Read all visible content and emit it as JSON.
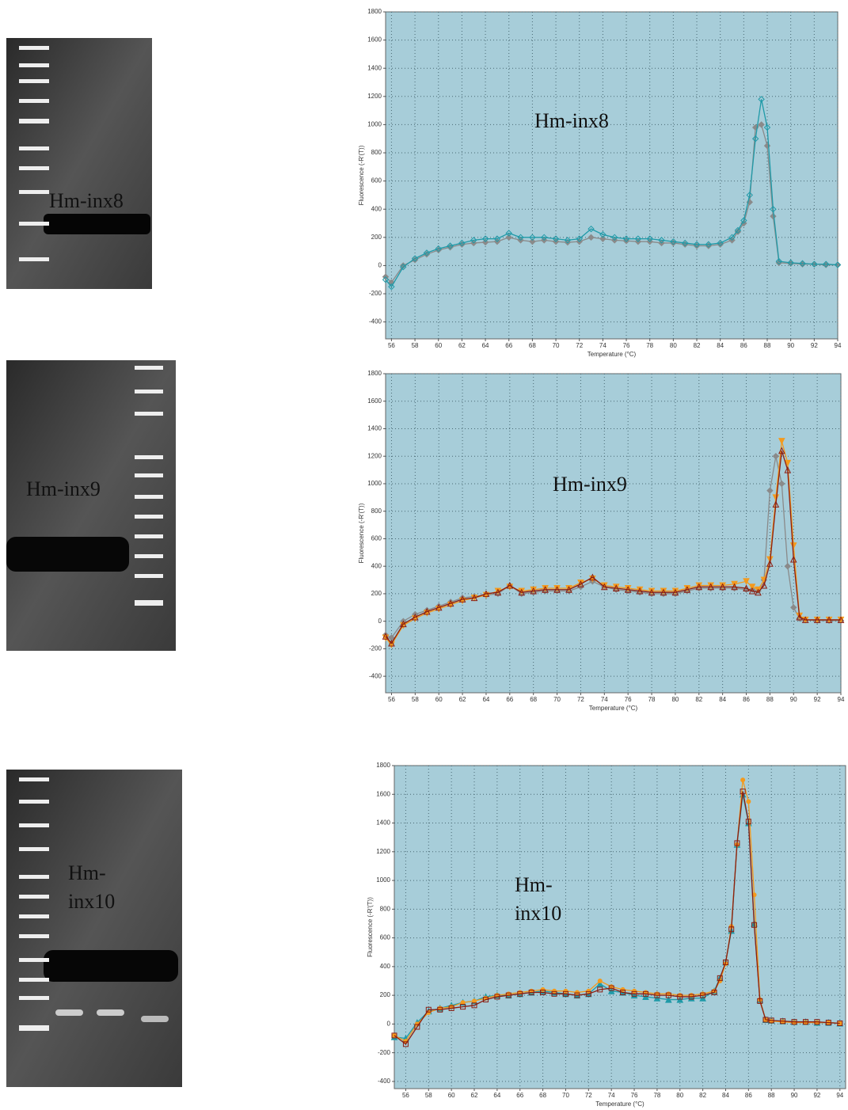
{
  "gels": [
    {
      "label": "Hm-inx8"
    },
    {
      "label": "Hm-inx9"
    },
    {
      "label": "Hm-inx10"
    }
  ],
  "chart_data": [
    {
      "type": "line",
      "annotation": "Hm-inx8",
      "xlabel": "Temperature (°C)",
      "ylabel": "Fluorescence (-R'(T))",
      "xlim": [
        55.5,
        94
      ],
      "ylim": [
        -520,
        1800
      ],
      "grid": true,
      "xticks": [
        56,
        58,
        60,
        62,
        64,
        66,
        68,
        70,
        72,
        74,
        76,
        78,
        80,
        82,
        84,
        86,
        88,
        90,
        92,
        94
      ],
      "yticks": [
        -400,
        -200,
        0,
        200,
        400,
        600,
        800,
        1000,
        1200,
        1400,
        1600,
        1800
      ],
      "x": [
        55.5,
        56,
        57,
        58,
        59,
        60,
        61,
        62,
        63,
        64,
        65,
        66,
        67,
        68,
        69,
        70,
        71,
        72,
        73,
        74,
        75,
        76,
        77,
        78,
        79,
        80,
        81,
        82,
        83,
        84,
        85,
        85.5,
        86,
        86.5,
        87,
        87.5,
        88,
        88.5,
        89,
        90,
        91,
        92,
        93,
        94
      ],
      "series": [
        {
          "color": "#8a8a8a",
          "marker": "diamond-filled",
          "values": [
            -80,
            -120,
            0,
            40,
            80,
            110,
            130,
            150,
            160,
            165,
            170,
            200,
            180,
            170,
            180,
            170,
            165,
            170,
            200,
            190,
            180,
            175,
            170,
            170,
            160,
            160,
            150,
            140,
            140,
            150,
            180,
            240,
            300,
            450,
            980,
            1000,
            850,
            350,
            20,
            15,
            10,
            10,
            5,
            5
          ]
        },
        {
          "color": "#1f9aa8",
          "marker": "diamond",
          "values": [
            -100,
            -150,
            -10,
            50,
            90,
            120,
            140,
            160,
            180,
            190,
            190,
            230,
            200,
            200,
            200,
            190,
            180,
            190,
            260,
            220,
            200,
            190,
            190,
            190,
            180,
            170,
            160,
            150,
            150,
            160,
            200,
            250,
            320,
            500,
            900,
            1180,
            980,
            400,
            30,
            20,
            15,
            10,
            10,
            5
          ]
        }
      ]
    },
    {
      "type": "line",
      "annotation": "Hm-inx9",
      "xlabel": "Temperature (°C)",
      "ylabel": "Fluorescence (-R'(T))",
      "xlim": [
        55.5,
        94
      ],
      "ylim": [
        -520,
        1800
      ],
      "grid": true,
      "xticks": [
        56,
        58,
        60,
        62,
        64,
        66,
        68,
        70,
        72,
        74,
        76,
        78,
        80,
        82,
        84,
        86,
        88,
        90,
        92,
        94
      ],
      "yticks": [
        -400,
        -200,
        0,
        200,
        400,
        600,
        800,
        1000,
        1200,
        1400,
        1600,
        1800
      ],
      "x": [
        55.5,
        56,
        57,
        58,
        59,
        60,
        61,
        62,
        63,
        64,
        65,
        66,
        67,
        68,
        69,
        70,
        71,
        72,
        73,
        74,
        75,
        76,
        77,
        78,
        79,
        80,
        81,
        82,
        83,
        84,
        85,
        86,
        86.5,
        87,
        87.5,
        88,
        88.5,
        89,
        89.5,
        90,
        90.5,
        91,
        92,
        93,
        94
      ],
      "series": [
        {
          "color": "#8a8a8a",
          "marker": "diamond-filled",
          "values": [
            -100,
            -120,
            0,
            50,
            80,
            110,
            140,
            170,
            180,
            190,
            200,
            260,
            200,
            210,
            220,
            220,
            220,
            250,
            290,
            250,
            230,
            220,
            210,
            200,
            200,
            200,
            220,
            240,
            240,
            240,
            240,
            230,
            230,
            220,
            300,
            950,
            1200,
            1000,
            400,
            100,
            20,
            10,
            5,
            5,
            5
          ]
        },
        {
          "color": "#f39a1e",
          "marker": "triangle-down",
          "values": [
            -120,
            -170,
            -30,
            20,
            60,
            90,
            120,
            150,
            170,
            190,
            220,
            250,
            220,
            230,
            240,
            240,
            240,
            280,
            310,
            260,
            250,
            240,
            230,
            220,
            220,
            220,
            240,
            260,
            260,
            260,
            270,
            290,
            250,
            230,
            300,
            450,
            900,
            1310,
            1150,
            550,
            40,
            10,
            10,
            10,
            10
          ]
        },
        {
          "color": "#8b1e12",
          "marker": "triangle",
          "values": [
            -110,
            -160,
            -20,
            30,
            70,
            100,
            130,
            160,
            170,
            200,
            210,
            260,
            210,
            220,
            230,
            230,
            230,
            270,
            320,
            250,
            240,
            230,
            220,
            210,
            210,
            210,
            230,
            250,
            250,
            250,
            250,
            240,
            220,
            210,
            260,
            420,
            850,
            1240,
            1100,
            450,
            30,
            10,
            10,
            10,
            10
          ]
        }
      ]
    },
    {
      "type": "line",
      "annotation": "Hm-inx10",
      "xlabel": "Temperature (°C)",
      "ylabel": "Fluorescence (-R'(T))",
      "xlim": [
        55,
        94.5
      ],
      "ylim": [
        -450,
        1800
      ],
      "grid": true,
      "xticks": [
        56,
        58,
        60,
        62,
        64,
        66,
        68,
        70,
        72,
        74,
        76,
        78,
        80,
        82,
        84,
        86,
        88,
        90,
        92,
        94
      ],
      "yticks": [
        -400,
        -200,
        0,
        200,
        400,
        600,
        800,
        1000,
        1200,
        1400,
        1600,
        1800
      ],
      "x": [
        55,
        56,
        57,
        58,
        59,
        60,
        61,
        62,
        63,
        64,
        65,
        66,
        67,
        68,
        69,
        70,
        71,
        72,
        73,
        74,
        75,
        76,
        77,
        78,
        79,
        80,
        81,
        82,
        83,
        83.5,
        84,
        84.5,
        85,
        85.5,
        86,
        86.5,
        87,
        87.5,
        88,
        89,
        90,
        91,
        92,
        93,
        94
      ],
      "series": [
        {
          "color": "#1f9aa8",
          "marker": "triangle-filled",
          "values": [
            -90,
            -100,
            10,
            90,
            110,
            130,
            150,
            160,
            190,
            200,
            200,
            210,
            220,
            230,
            220,
            210,
            200,
            210,
            280,
            230,
            220,
            200,
            190,
            180,
            170,
            170,
            180,
            180,
            230,
            320,
            430,
            650,
            1250,
            1600,
            1400,
            700,
            170,
            30,
            25,
            20,
            15,
            15,
            10,
            10,
            5
          ]
        },
        {
          "color": "#f39a1e",
          "marker": "star",
          "values": [
            -80,
            -120,
            0,
            80,
            110,
            120,
            150,
            160,
            180,
            200,
            210,
            220,
            230,
            240,
            230,
            230,
            220,
            230,
            300,
            260,
            240,
            230,
            220,
            210,
            210,
            200,
            200,
            210,
            230,
            300,
            420,
            680,
            1250,
            1700,
            1550,
            900,
            170,
            30,
            20,
            15,
            10,
            10,
            10,
            10,
            5
          ]
        },
        {
          "color": "#8b1e12",
          "marker": "square",
          "values": [
            -80,
            -140,
            -20,
            100,
            100,
            110,
            120,
            130,
            170,
            190,
            200,
            210,
            220,
            220,
            210,
            210,
            200,
            210,
            240,
            250,
            220,
            210,
            210,
            200,
            200,
            190,
            190,
            200,
            220,
            320,
            430,
            660,
            1260,
            1620,
            1410,
            690,
            160,
            30,
            25,
            20,
            15,
            15,
            15,
            10,
            5
          ]
        }
      ]
    }
  ]
}
